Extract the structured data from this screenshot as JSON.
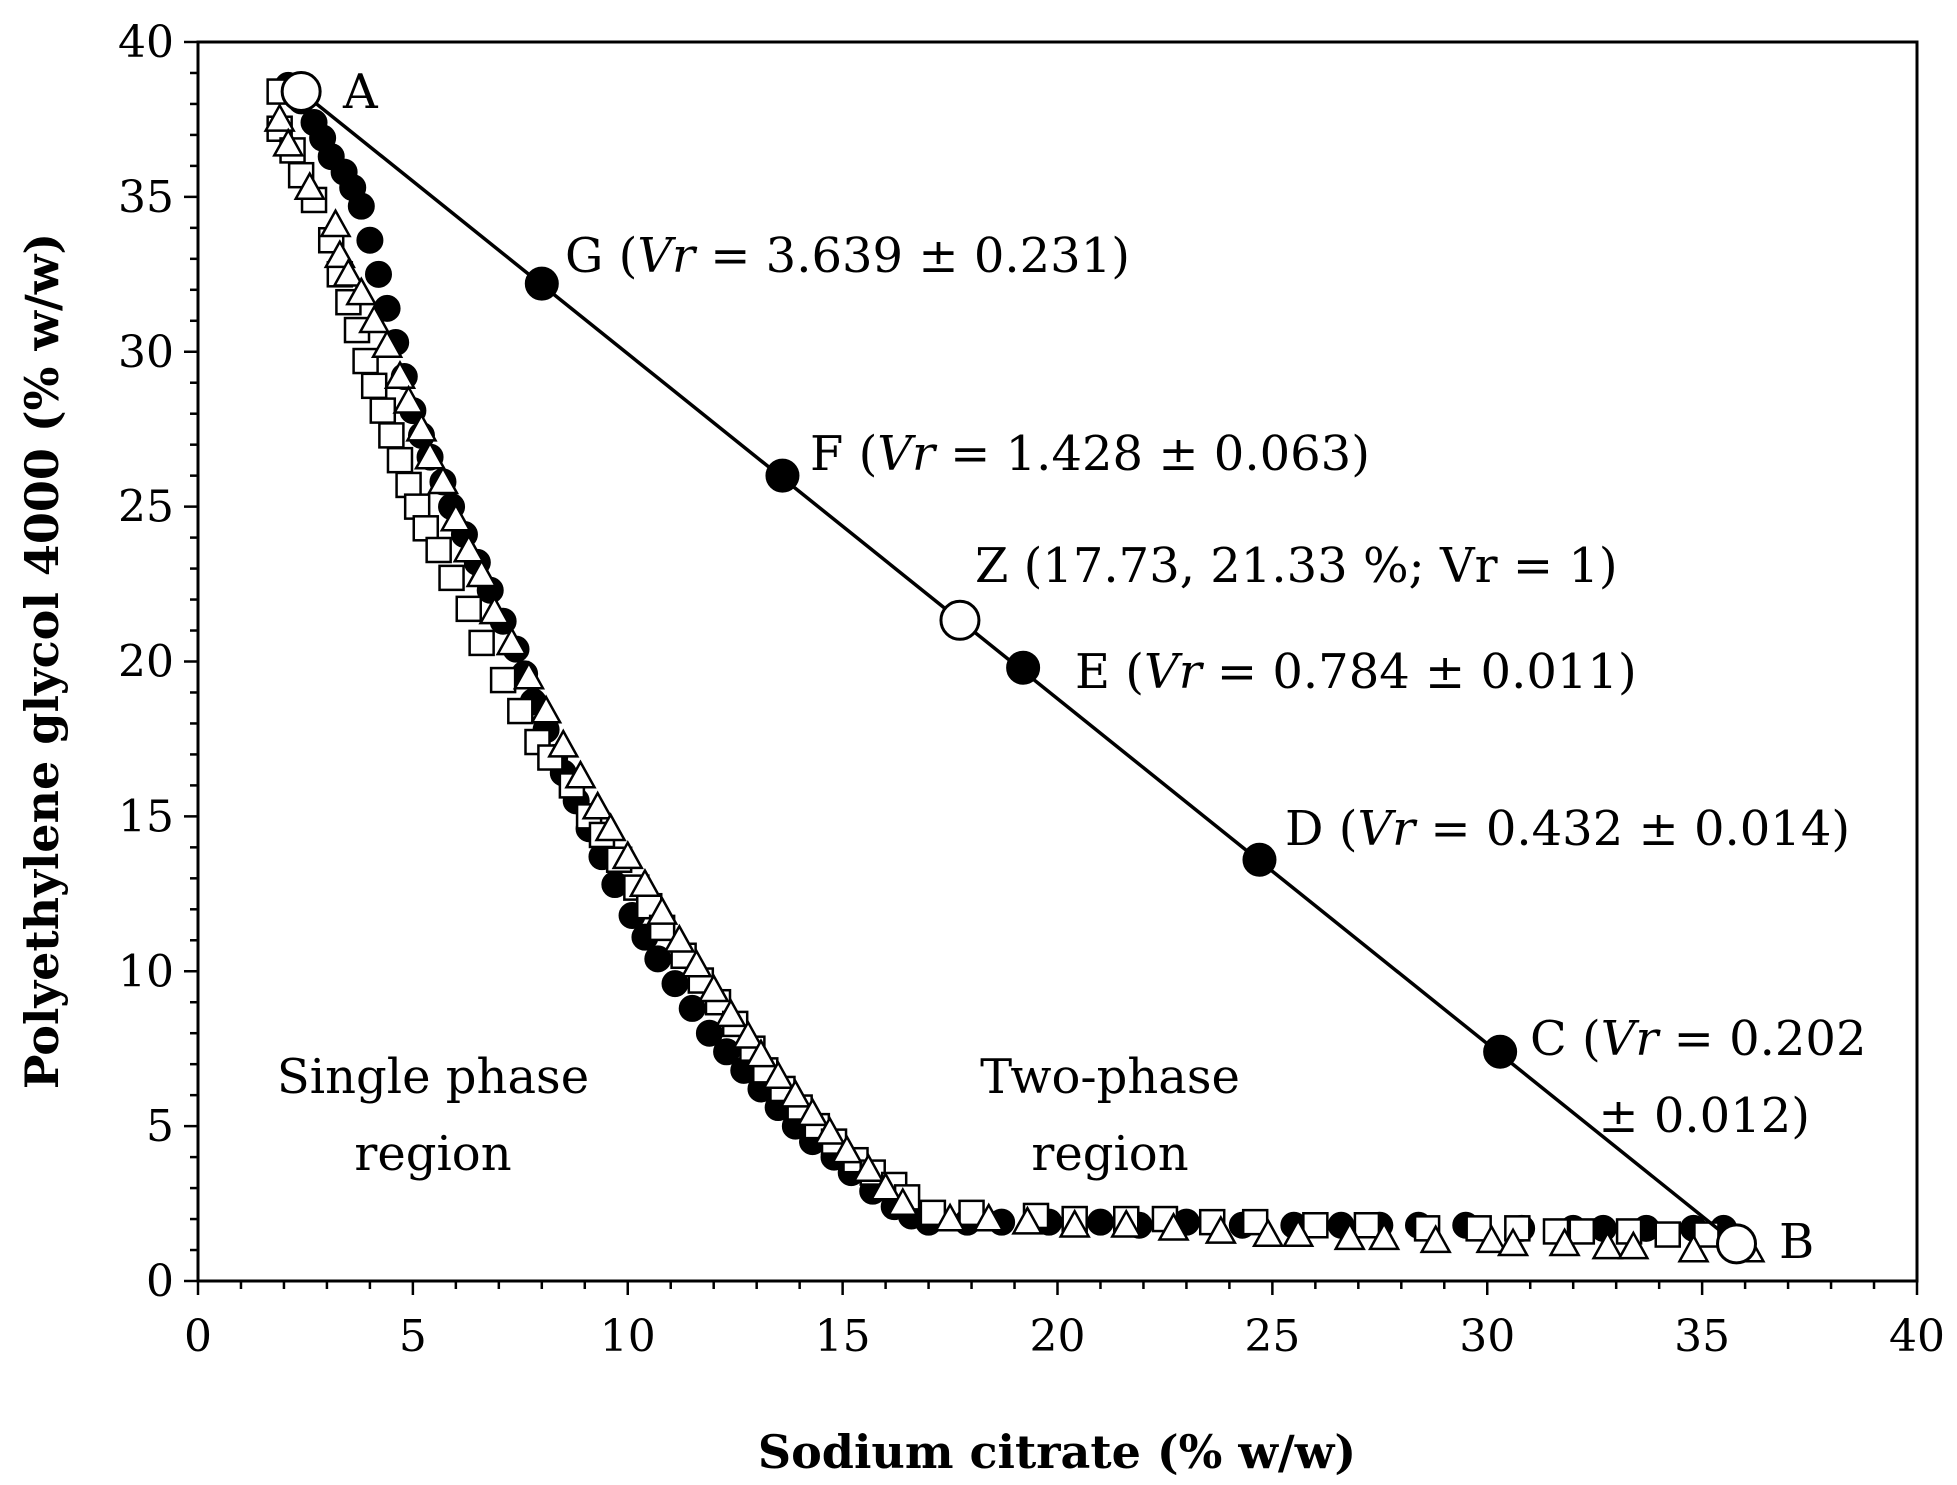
{
  "chart_data": {
    "type": "scatter",
    "xlabel": "Sodium citrate (% w/w)",
    "ylabel": "Polyethylene glycol 4000 (% w/w)",
    "xlim": [
      0,
      40
    ],
    "ylim": [
      0,
      40
    ],
    "x_ticks": [
      "0",
      "5",
      "10",
      "15",
      "20",
      "25",
      "30",
      "35",
      "40"
    ],
    "y_ticks": [
      "0",
      "5",
      "10",
      "15",
      "20",
      "25",
      "30",
      "35",
      "40"
    ],
    "binodal_series": [
      {
        "name": "filled circles",
        "marker": "filled-circle",
        "points": [
          [
            2.1,
            38.6
          ],
          [
            2.4,
            38.1
          ],
          [
            2.7,
            37.4
          ],
          [
            2.9,
            36.9
          ],
          [
            3.1,
            36.3
          ],
          [
            3.4,
            35.8
          ],
          [
            3.6,
            35.3
          ],
          [
            3.8,
            34.7
          ],
          [
            4.0,
            33.6
          ],
          [
            4.2,
            32.5
          ],
          [
            4.4,
            31.4
          ],
          [
            4.6,
            30.3
          ],
          [
            4.8,
            29.2
          ],
          [
            5.0,
            28.1
          ],
          [
            5.2,
            27.3
          ],
          [
            5.4,
            26.6
          ],
          [
            5.7,
            25.8
          ],
          [
            5.9,
            25.0
          ],
          [
            6.2,
            24.1
          ],
          [
            6.5,
            23.2
          ],
          [
            6.8,
            22.3
          ],
          [
            7.1,
            21.3
          ],
          [
            7.4,
            20.4
          ],
          [
            7.6,
            19.6
          ],
          [
            7.8,
            18.7
          ],
          [
            8.1,
            17.8
          ],
          [
            8.3,
            16.9
          ],
          [
            8.5,
            16.4
          ],
          [
            8.8,
            15.5
          ],
          [
            9.1,
            14.6
          ],
          [
            9.4,
            13.7
          ],
          [
            9.7,
            12.8
          ],
          [
            10.1,
            11.8
          ],
          [
            10.4,
            11.1
          ],
          [
            10.7,
            10.4
          ],
          [
            11.1,
            9.6
          ],
          [
            11.5,
            8.8
          ],
          [
            11.9,
            8.0
          ],
          [
            12.3,
            7.4
          ],
          [
            12.7,
            6.8
          ],
          [
            13.1,
            6.2
          ],
          [
            13.5,
            5.6
          ],
          [
            13.9,
            5.0
          ],
          [
            14.3,
            4.5
          ],
          [
            14.8,
            4.0
          ],
          [
            15.2,
            3.5
          ],
          [
            15.7,
            2.9
          ],
          [
            16.2,
            2.4
          ],
          [
            16.6,
            2.1
          ],
          [
            17.0,
            1.9
          ],
          [
            17.9,
            1.9
          ],
          [
            18.7,
            1.9
          ],
          [
            19.8,
            1.9
          ],
          [
            21.0,
            1.9
          ],
          [
            21.9,
            1.8
          ],
          [
            23.0,
            1.9
          ],
          [
            24.3,
            1.8
          ],
          [
            25.5,
            1.8
          ],
          [
            26.6,
            1.8
          ],
          [
            27.5,
            1.8
          ],
          [
            28.4,
            1.8
          ],
          [
            29.5,
            1.8
          ],
          [
            30.8,
            1.7
          ],
          [
            32.0,
            1.7
          ],
          [
            32.7,
            1.7
          ],
          [
            33.7,
            1.7
          ],
          [
            34.8,
            1.7
          ],
          [
            35.5,
            1.7
          ]
        ]
      },
      {
        "name": "open squares",
        "marker": "open-square",
        "points": [
          [
            1.9,
            38.4
          ],
          [
            1.9,
            37.2
          ],
          [
            2.2,
            36.5
          ],
          [
            2.4,
            35.7
          ],
          [
            2.7,
            34.9
          ],
          [
            3.1,
            33.6
          ],
          [
            3.3,
            32.5
          ],
          [
            3.5,
            31.6
          ],
          [
            3.7,
            30.7
          ],
          [
            3.9,
            29.7
          ],
          [
            4.1,
            28.9
          ],
          [
            4.3,
            28.1
          ],
          [
            4.5,
            27.3
          ],
          [
            4.7,
            26.5
          ],
          [
            4.9,
            25.7
          ],
          [
            5.1,
            25.0
          ],
          [
            5.3,
            24.3
          ],
          [
            5.6,
            23.6
          ],
          [
            5.9,
            22.7
          ],
          [
            6.3,
            21.7
          ],
          [
            6.6,
            20.6
          ],
          [
            7.1,
            19.4
          ],
          [
            7.5,
            18.4
          ],
          [
            7.9,
            17.4
          ],
          [
            8.2,
            16.9
          ],
          [
            8.7,
            16.0
          ],
          [
            9.1,
            15.0
          ],
          [
            9.4,
            14.4
          ],
          [
            9.8,
            13.6
          ],
          [
            10.2,
            12.7
          ],
          [
            10.5,
            12.1
          ],
          [
            10.8,
            11.4
          ],
          [
            11.3,
            10.5
          ],
          [
            11.7,
            9.7
          ],
          [
            12.1,
            9.0
          ],
          [
            12.5,
            8.3
          ],
          [
            12.9,
            7.5
          ],
          [
            13.2,
            6.8
          ],
          [
            13.6,
            6.2
          ],
          [
            14.0,
            5.6
          ],
          [
            14.4,
            5.0
          ],
          [
            14.8,
            4.5
          ],
          [
            15.3,
            3.9
          ],
          [
            15.7,
            3.5
          ],
          [
            16.2,
            3.1
          ],
          [
            16.5,
            2.7
          ],
          [
            17.1,
            2.2
          ],
          [
            18.0,
            2.2
          ],
          [
            19.5,
            2.1
          ],
          [
            20.4,
            2.0
          ],
          [
            21.6,
            2.0
          ],
          [
            22.5,
            2.0
          ],
          [
            23.6,
            1.9
          ],
          [
            24.6,
            1.9
          ],
          [
            26.0,
            1.8
          ],
          [
            27.2,
            1.8
          ],
          [
            28.6,
            1.7
          ],
          [
            29.8,
            1.7
          ],
          [
            30.7,
            1.7
          ],
          [
            31.6,
            1.6
          ],
          [
            32.2,
            1.6
          ],
          [
            33.3,
            1.6
          ],
          [
            34.2,
            1.5
          ],
          [
            35.1,
            1.5
          ]
        ]
      },
      {
        "name": "open triangles",
        "marker": "open-triangle",
        "points": [
          [
            1.9,
            37.5
          ],
          [
            2.1,
            36.7
          ],
          [
            2.6,
            35.3
          ],
          [
            3.2,
            34.1
          ],
          [
            3.3,
            33.1
          ],
          [
            3.5,
            32.5
          ],
          [
            3.8,
            31.9
          ],
          [
            4.1,
            31.0
          ],
          [
            4.4,
            30.2
          ],
          [
            4.7,
            29.2
          ],
          [
            4.9,
            28.4
          ],
          [
            5.2,
            27.5
          ],
          [
            5.4,
            26.6
          ],
          [
            5.7,
            25.8
          ],
          [
            6.0,
            24.6
          ],
          [
            6.3,
            23.6
          ],
          [
            6.6,
            22.8
          ],
          [
            6.9,
            21.6
          ],
          [
            7.3,
            20.6
          ],
          [
            7.7,
            19.5
          ],
          [
            8.1,
            18.4
          ],
          [
            8.5,
            17.3
          ],
          [
            8.9,
            16.3
          ],
          [
            9.3,
            15.3
          ],
          [
            9.6,
            14.6
          ],
          [
            10.0,
            13.7
          ],
          [
            10.4,
            12.8
          ],
          [
            10.8,
            11.9
          ],
          [
            11.2,
            11.0
          ],
          [
            11.6,
            10.2
          ],
          [
            12.0,
            9.4
          ],
          [
            12.4,
            8.6
          ],
          [
            12.8,
            7.9
          ],
          [
            13.1,
            7.3
          ],
          [
            13.5,
            6.6
          ],
          [
            13.9,
            6.0
          ],
          [
            14.3,
            5.4
          ],
          [
            14.7,
            4.8
          ],
          [
            15.1,
            4.2
          ],
          [
            15.6,
            3.6
          ],
          [
            16.0,
            3.0
          ],
          [
            16.4,
            2.5
          ],
          [
            17.5,
            2.0
          ],
          [
            18.4,
            2.0
          ],
          [
            19.3,
            1.9
          ],
          [
            20.4,
            1.8
          ],
          [
            21.6,
            1.8
          ],
          [
            22.7,
            1.7
          ],
          [
            23.8,
            1.6
          ],
          [
            24.9,
            1.5
          ],
          [
            25.6,
            1.5
          ],
          [
            26.8,
            1.4
          ],
          [
            27.6,
            1.4
          ],
          [
            28.8,
            1.3
          ],
          [
            30.1,
            1.3
          ],
          [
            30.6,
            1.2
          ],
          [
            31.8,
            1.2
          ],
          [
            32.8,
            1.1
          ],
          [
            33.4,
            1.1
          ],
          [
            34.8,
            1.0
          ],
          [
            36.1,
            1.0
          ]
        ]
      }
    ],
    "tie_line": {
      "start": {
        "label": "A",
        "x": 2.4,
        "y": 38.4,
        "marker": "open-circle"
      },
      "end": {
        "label": "B",
        "x": 35.8,
        "y": 1.2,
        "marker": "open-circle"
      }
    },
    "labeled_points": [
      {
        "key": "G",
        "x": 8.0,
        "y": 32.2,
        "marker": "filled-circle",
        "label_prefix": "G (",
        "label_vr": "Vr",
        "label_value": " = 3.639 ± 0.231)"
      },
      {
        "key": "F",
        "x": 13.6,
        "y": 26.0,
        "marker": "filled-circle",
        "label_prefix": "F (",
        "label_vr": "Vr",
        "label_value": " = 1.428 ± 0.063)"
      },
      {
        "key": "Z",
        "x": 17.73,
        "y": 21.33,
        "marker": "open-circle",
        "label": "Z (17.73, 21.33 %; Vr = 1)"
      },
      {
        "key": "E",
        "x": 19.2,
        "y": 19.8,
        "marker": "filled-circle",
        "label_prefix": "E (",
        "label_vr": "Vr",
        "label_value": " = 0.784 ± 0.011)"
      },
      {
        "key": "D",
        "x": 24.7,
        "y": 13.6,
        "marker": "filled-circle",
        "label_prefix": "D (",
        "label_vr": "Vr",
        "label_value": " = 0.432 ± 0.014)"
      },
      {
        "key": "C",
        "x": 30.3,
        "y": 7.4,
        "marker": "filled-circle",
        "label_prefix": "C (",
        "label_vr": "Vr",
        "label_value": " = 0.202",
        "label_line2": "± 0.012)"
      }
    ],
    "region_labels": {
      "single": [
        "Single phase",
        "region"
      ],
      "two": [
        "Two-phase",
        "region"
      ]
    }
  }
}
